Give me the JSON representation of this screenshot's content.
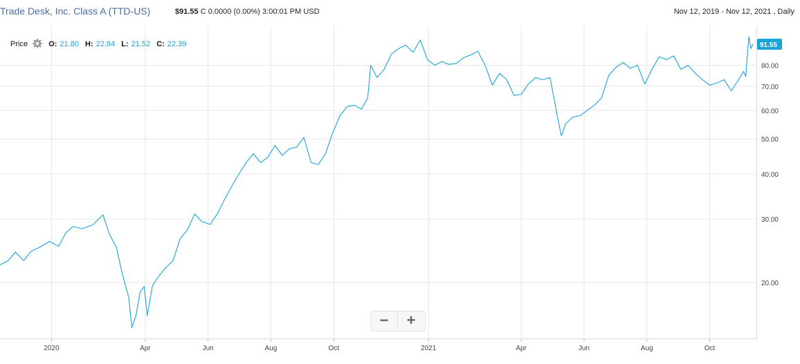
{
  "header": {
    "title": "Trade Desk, Inc. Class A (TTD-US)",
    "price": "$91.55",
    "suffix": "C",
    "change": "0.0000",
    "change_pct": "(0.00%)",
    "time": "3:00:01 PM USD",
    "range": "Nov 12, 2019 - Nov 12, 2021 , Daily"
  },
  "legend": {
    "price_label": "Price",
    "settings_icon": "gear-icon",
    "open_label": "O:",
    "open": "21.80",
    "high_label": "H:",
    "high": "22.84",
    "low_label": "L:",
    "low": "21.52",
    "close_label": "C:",
    "close": "22.39"
  },
  "zoom": {
    "out": "−",
    "in": "+"
  },
  "colors": {
    "line": "#1aa4d8",
    "badge": "#1aa4d8",
    "grid": "#e6e6e6"
  },
  "chart_data": {
    "type": "line",
    "title": "",
    "xlabel": "",
    "ylabel": "",
    "scale": "log",
    "ylim": [
      14.5,
      100
    ],
    "x_range": [
      "2019-11-12",
      "2021-11-12"
    ],
    "y_ticks": [
      20,
      30,
      40,
      50,
      60,
      70,
      80
    ],
    "y_tick_labels": [
      "20.00",
      "30.00",
      "40.00",
      "50.00",
      "60.00",
      "70.00",
      "80.00"
    ],
    "x_ticks": [
      {
        "date": "2020-01-01",
        "label": "2020"
      },
      {
        "date": "2020-04-01",
        "label": "Apr"
      },
      {
        "date": "2020-06-01",
        "label": "Jun"
      },
      {
        "date": "2020-08-01",
        "label": "Aug"
      },
      {
        "date": "2020-10-01",
        "label": "Oct"
      },
      {
        "date": "2021-01-01",
        "label": "2021"
      },
      {
        "date": "2021-04-01",
        "label": "Apr"
      },
      {
        "date": "2021-06-01",
        "label": "Jun"
      },
      {
        "date": "2021-08-01",
        "label": "Aug"
      },
      {
        "date": "2021-10-01",
        "label": "Oct"
      }
    ],
    "last_value": 91.55,
    "last_label": "91.55",
    "grid": true,
    "series": [
      {
        "name": "",
        "points": [
          [
            "2019-11-12",
            22.4
          ],
          [
            "2019-11-20",
            23.0
          ],
          [
            "2019-11-27",
            24.3
          ],
          [
            "2019-12-05",
            23.0
          ],
          [
            "2019-12-12",
            24.4
          ],
          [
            "2019-12-20",
            25.0
          ],
          [
            "2019-12-30",
            26.0
          ],
          [
            "2020-01-08",
            25.2
          ],
          [
            "2020-01-15",
            27.5
          ],
          [
            "2020-01-22",
            28.6
          ],
          [
            "2020-01-31",
            28.2
          ],
          [
            "2020-02-10",
            28.9
          ],
          [
            "2020-02-20",
            30.8
          ],
          [
            "2020-02-26",
            27.3
          ],
          [
            "2020-03-04",
            25.0
          ],
          [
            "2020-03-10",
            21.0
          ],
          [
            "2020-03-16",
            18.2
          ],
          [
            "2020-03-19",
            15.0
          ],
          [
            "2020-03-23",
            16.2
          ],
          [
            "2020-03-27",
            18.8
          ],
          [
            "2020-03-31",
            19.5
          ],
          [
            "2020-04-03",
            16.2
          ],
          [
            "2020-04-08",
            19.6
          ],
          [
            "2020-04-14",
            20.8
          ],
          [
            "2020-04-21",
            22.0
          ],
          [
            "2020-04-28",
            23.0
          ],
          [
            "2020-05-05",
            26.5
          ],
          [
            "2020-05-12",
            28.0
          ],
          [
            "2020-05-19",
            31.0
          ],
          [
            "2020-05-26",
            29.5
          ],
          [
            "2020-06-03",
            29.0
          ],
          [
            "2020-06-10",
            31.0
          ],
          [
            "2020-06-17",
            34.0
          ],
          [
            "2020-06-24",
            37.0
          ],
          [
            "2020-07-01",
            40.0
          ],
          [
            "2020-07-08",
            43.0
          ],
          [
            "2020-07-15",
            45.5
          ],
          [
            "2020-07-22",
            43.0
          ],
          [
            "2020-07-29",
            44.5
          ],
          [
            "2020-08-05",
            48.0
          ],
          [
            "2020-08-12",
            45.0
          ],
          [
            "2020-08-19",
            47.0
          ],
          [
            "2020-08-26",
            47.5
          ],
          [
            "2020-09-02",
            50.5
          ],
          [
            "2020-09-09",
            43.0
          ],
          [
            "2020-09-16",
            42.5
          ],
          [
            "2020-09-23",
            45.5
          ],
          [
            "2020-09-30",
            52.0
          ],
          [
            "2020-10-07",
            58.0
          ],
          [
            "2020-10-14",
            61.5
          ],
          [
            "2020-10-21",
            62.0
          ],
          [
            "2020-10-28",
            60.5
          ],
          [
            "2020-11-03",
            65.0
          ],
          [
            "2020-11-06",
            80.0
          ],
          [
            "2020-11-12",
            74.0
          ],
          [
            "2020-11-19",
            78.0
          ],
          [
            "2020-11-26",
            86.0
          ],
          [
            "2020-12-03",
            89.0
          ],
          [
            "2020-12-10",
            91.0
          ],
          [
            "2020-12-17",
            87.0
          ],
          [
            "2020-12-24",
            94.0
          ],
          [
            "2020-12-31",
            83.0
          ],
          [
            "2021-01-07",
            80.0
          ],
          [
            "2021-01-14",
            82.0
          ],
          [
            "2021-01-21",
            80.5
          ],
          [
            "2021-01-28",
            81.0
          ],
          [
            "2021-02-04",
            84.0
          ],
          [
            "2021-02-11",
            85.5
          ],
          [
            "2021-02-18",
            87.5
          ],
          [
            "2021-02-25",
            80.0
          ],
          [
            "2021-03-04",
            70.5
          ],
          [
            "2021-03-11",
            76.0
          ],
          [
            "2021-03-18",
            73.0
          ],
          [
            "2021-03-25",
            66.0
          ],
          [
            "2021-04-01",
            66.5
          ],
          [
            "2021-04-08",
            71.0
          ],
          [
            "2021-04-15",
            74.0
          ],
          [
            "2021-04-22",
            73.0
          ],
          [
            "2021-04-29",
            74.0
          ],
          [
            "2021-05-06",
            58.0
          ],
          [
            "2021-05-10",
            51.0
          ],
          [
            "2021-05-14",
            55.0
          ],
          [
            "2021-05-21",
            57.5
          ],
          [
            "2021-05-28",
            58.0
          ],
          [
            "2021-06-04",
            60.0
          ],
          [
            "2021-06-11",
            62.0
          ],
          [
            "2021-06-18",
            65.0
          ],
          [
            "2021-06-25",
            75.0
          ],
          [
            "2021-07-02",
            79.0
          ],
          [
            "2021-07-09",
            81.5
          ],
          [
            "2021-07-16",
            78.5
          ],
          [
            "2021-07-23",
            80.0
          ],
          [
            "2021-07-30",
            71.0
          ],
          [
            "2021-08-06",
            78.0
          ],
          [
            "2021-08-13",
            84.5
          ],
          [
            "2021-08-20",
            83.0
          ],
          [
            "2021-08-27",
            85.0
          ],
          [
            "2021-09-03",
            78.0
          ],
          [
            "2021-09-10",
            80.0
          ],
          [
            "2021-09-17",
            76.0
          ],
          [
            "2021-09-24",
            73.0
          ],
          [
            "2021-10-01",
            70.5
          ],
          [
            "2021-10-08",
            71.5
          ],
          [
            "2021-10-15",
            73.0
          ],
          [
            "2021-10-22",
            68.0
          ],
          [
            "2021-10-29",
            73.0
          ],
          [
            "2021-11-03",
            77.0
          ],
          [
            "2021-11-05",
            74.5
          ],
          [
            "2021-11-08",
            96.0
          ],
          [
            "2021-11-10",
            89.0
          ],
          [
            "2021-11-12",
            91.55
          ]
        ]
      }
    ]
  }
}
